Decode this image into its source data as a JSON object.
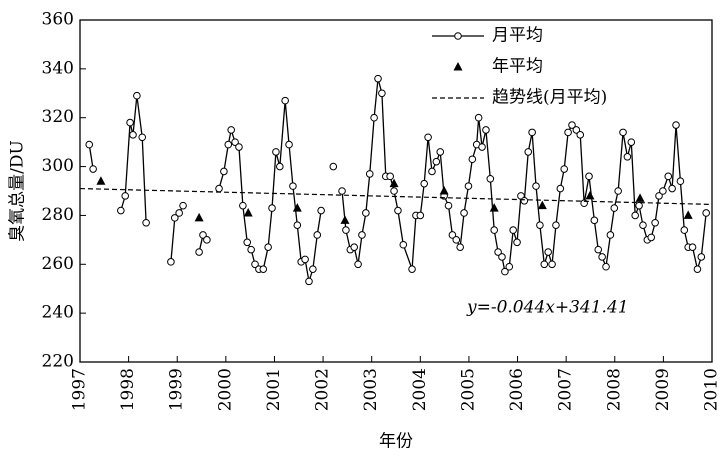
{
  "chart_data": {
    "type": "line",
    "xlabel": "年份",
    "ylabel": "臭氧总量/DU",
    "annotation": "y=-0.044x+341.41",
    "xlim": [
      1997,
      2010
    ],
    "xticks": [
      1997,
      1998,
      1999,
      2000,
      2001,
      2002,
      2003,
      2004,
      2005,
      2006,
      2007,
      2008,
      2009,
      2010
    ],
    "ylim": [
      220,
      360
    ],
    "yticks": [
      220,
      240,
      260,
      280,
      300,
      320,
      340,
      360
    ],
    "legend": "upper right",
    "series": [
      {
        "name": "月平均",
        "color": "#000000",
        "marker": "circle",
        "line": "solid",
        "x": [
          1997.19,
          1997.27,
          null,
          1997.84,
          1997.93,
          1998.03,
          1998.09,
          1998.17,
          1998.28,
          1998.36,
          null,
          1998.87,
          1998.95,
          1999.04,
          1999.12,
          null,
          1999.45,
          1999.53,
          1999.61,
          null,
          1999.86,
          1999.96,
          2000.05,
          2000.11,
          2000.19,
          2000.27,
          2000.35,
          2000.44,
          2000.52,
          2000.6,
          2000.68,
          2000.77,
          2000.87,
          2000.95,
          2001.03,
          2001.11,
          2001.22,
          2001.3,
          2001.38,
          2001.47,
          2001.55,
          2001.63,
          2001.71,
          2001.79,
          2001.88,
          2001.96,
          null,
          2002.21,
          null,
          2002.39,
          2002.47,
          2002.56,
          2002.64,
          2002.72,
          2002.8,
          2002.88,
          2002.96,
          2003.05,
          2003.13,
          2003.21,
          2003.29,
          2003.38,
          2003.46,
          2003.54,
          2003.65,
          2003.83,
          2003.91,
          2004.0,
          2004.08,
          2004.16,
          2004.24,
          2004.33,
          2004.41,
          2004.49,
          2004.58,
          2004.66,
          2004.74,
          2004.82,
          2004.9,
          2004.99,
          2005.07,
          2005.16,
          2005.2,
          2005.27,
          2005.35,
          2005.44,
          2005.52,
          2005.6,
          2005.68,
          2005.74,
          2005.83,
          2005.91,
          2005.99,
          2006.07,
          2006.14,
          2006.22,
          2006.3,
          2006.38,
          2006.46,
          2006.55,
          2006.63,
          2006.71,
          2006.79,
          2006.88,
          2006.96,
          2007.04,
          2007.12,
          2007.21,
          2007.29,
          2007.37,
          2007.47,
          2007.58,
          2007.66,
          2007.74,
          2007.82,
          2007.91,
          2007.99,
          2008.07,
          2008.17,
          2008.26,
          2008.34,
          2008.42,
          2008.5,
          2008.58,
          2008.67,
          2008.75,
          2008.83,
          2008.91,
          2008.99,
          2009.1,
          2009.18,
          2009.26,
          2009.35,
          2009.43,
          2009.51,
          2009.6,
          2009.7,
          2009.78,
          2009.88
        ],
        "values": [
          309,
          299,
          null,
          282,
          288,
          318,
          313,
          329,
          312,
          277,
          null,
          261,
          279,
          281,
          284,
          null,
          265,
          272,
          270,
          null,
          291,
          298,
          309,
          315,
          310,
          308,
          284,
          269,
          266,
          260,
          258,
          258,
          267,
          283,
          306,
          300,
          327,
          309,
          292,
          276,
          261,
          262,
          253,
          258,
          272,
          282,
          null,
          300,
          null,
          290,
          274,
          266,
          267,
          260,
          272,
          281,
          297,
          320,
          336,
          330,
          296,
          296,
          290,
          282,
          268,
          258,
          280,
          280,
          293,
          312,
          298,
          302,
          306,
          288,
          284,
          272,
          270,
          267,
          281,
          292,
          303,
          309,
          320,
          308,
          315,
          295,
          274,
          265,
          263,
          257,
          259,
          274,
          269,
          288,
          286,
          306,
          314,
          292,
          276,
          260,
          265,
          260,
          276,
          291,
          299,
          314,
          317,
          315,
          313,
          285,
          296,
          278,
          266,
          263,
          259,
          272,
          283,
          290,
          314,
          304,
          310,
          280,
          284,
          276,
          270,
          271,
          277,
          288,
          290,
          296,
          291,
          317,
          294,
          274,
          267,
          267,
          258,
          263,
          281
        ]
      },
      {
        "name": "年平均",
        "color": "#000000",
        "marker": "triangle",
        "line": "none",
        "x": [
          1997.43,
          1999.45,
          2000.46,
          2001.47,
          2002.45,
          2003.46,
          2004.49,
          2005.52,
          2006.51,
          2007.49,
          2008.52,
          2009.51
        ],
        "values": [
          294,
          279,
          281,
          283,
          278,
          293,
          290,
          283,
          284,
          288,
          287,
          280
        ]
      },
      {
        "name": "趋势线(月平均)",
        "color": "#000000",
        "marker": "none",
        "line": "dashed",
        "x": [
          1997,
          2010
        ],
        "values": [
          291,
          284.5
        ]
      }
    ]
  }
}
